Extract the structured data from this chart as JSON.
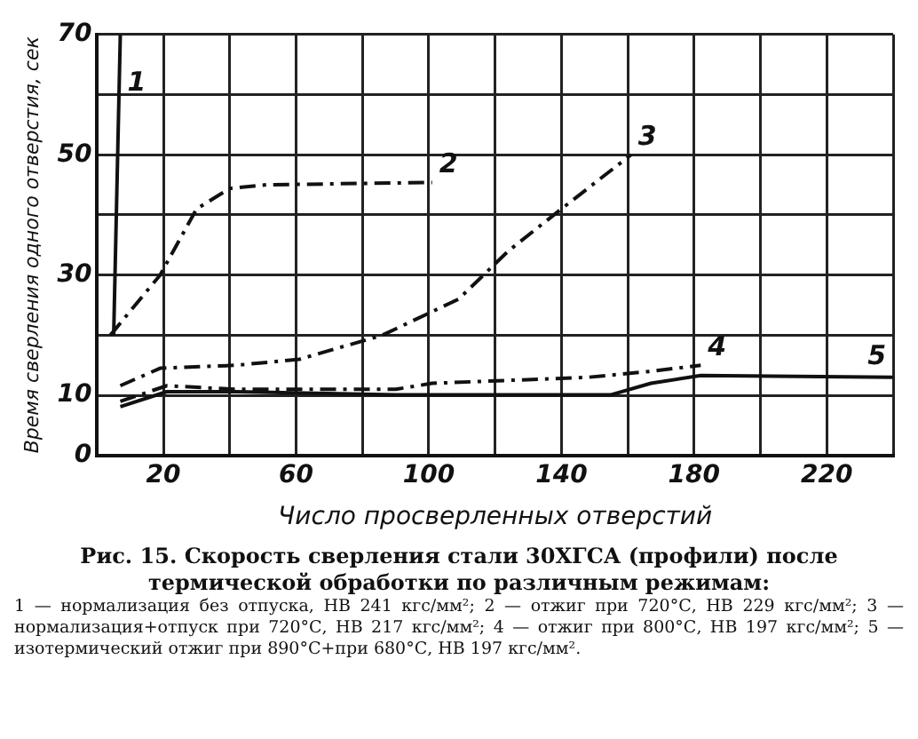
{
  "chart_data": {
    "type": "line",
    "title": "Рис. 15. Скорость сверления стали 30ХГСА (профили) после термической обработки по различным режимам:",
    "xlabel": "Число просверленных отверстий",
    "ylabel": "Время сверления одного отверстия, сек",
    "annotations": [
      "1 — нормализация без отпуска, НВ 241 кгс/мм²; 2 — отжиг при 720°С, НВ 229 кгс/мм²; 3 — нормализация+отпуск при 720°С, НВ 217 кгс/мм²; 4 — отжиг при 800°С, НВ 197 кгс/мм²; 5 — изотермический отжиг при 890°С+при 680°С, НВ 197 кгс/мм²."
    ],
    "xlim": [
      0,
      240
    ],
    "xticks": [
      {
        "value": 0,
        "label": null
      },
      20,
      {
        "value": 40,
        "label": null
      },
      60,
      {
        "value": 80,
        "label": null
      },
      100,
      {
        "value": 120,
        "label": null
      },
      140,
      {
        "value": 160,
        "label": null
      },
      180,
      {
        "value": 200,
        "label": null
      },
      220,
      {
        "value": 240,
        "label": null
      }
    ],
    "ylim": [
      0,
      70
    ],
    "yticks": [
      0,
      10,
      {
        "value": 20,
        "label": null
      },
      30,
      {
        "value": 40,
        "label": null
      },
      50,
      {
        "value": 60,
        "label": null
      },
      70
    ],
    "grid": true,
    "legend": false,
    "marker": "none",
    "series": [
      {
        "name": "1",
        "color": "#111111",
        "line_style": "solid",
        "x": [
          5,
          7
        ],
        "values": [
          20,
          70
        ]
      },
      {
        "name": "2",
        "color": "#111111",
        "line_style": "dashed",
        "x": [
          4,
          19,
          30,
          40,
          51,
          101
        ],
        "values": [
          20,
          30,
          41,
          44.4,
          45,
          45.4
        ]
      },
      {
        "name": "3",
        "color": "#111111",
        "line_style": "dashed",
        "x": [
          7,
          19,
          42,
          61,
          86,
          109,
          124,
          140,
          161
        ],
        "values": [
          11.6,
          14.5,
          15,
          16,
          20,
          26,
          34,
          41,
          50
        ]
      },
      {
        "name": "4",
        "color": "#111111",
        "line_style": "dashed",
        "x": [
          7,
          21,
          42,
          90,
          101,
          148,
          167,
          182
        ],
        "values": [
          9,
          11.6,
          11,
          11,
          12,
          13,
          14,
          15
        ]
      },
      {
        "name": "5",
        "color": "#111111",
        "line_style": "solid",
        "x": [
          7,
          21,
          42,
          90,
          155,
          167,
          182,
          240
        ],
        "values": [
          8.1,
          10.6,
          10.6,
          10.1,
          10.1,
          12,
          13.3,
          13
        ]
      }
    ]
  }
}
